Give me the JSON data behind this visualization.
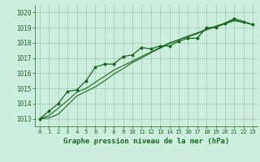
{
  "title": "Graphe pression niveau de la mer (hPa)",
  "background_color": "#cceedd",
  "grid_color": "#aaccbb",
  "line_color": "#1a6620",
  "marker_color": "#1a6620",
  "ylim": [
    1012.5,
    1020.5
  ],
  "xlim": [
    -0.5,
    23.5
  ],
  "yticks": [
    1013,
    1014,
    1015,
    1016,
    1017,
    1018,
    1019,
    1020
  ],
  "xticks": [
    0,
    1,
    2,
    3,
    4,
    5,
    6,
    7,
    8,
    9,
    10,
    11,
    12,
    13,
    14,
    15,
    16,
    17,
    18,
    19,
    20,
    21,
    22,
    23
  ],
  "series1": [
    1013.0,
    1013.5,
    1014.0,
    1014.8,
    1014.9,
    1015.5,
    1016.4,
    1016.6,
    1016.6,
    1017.1,
    1017.2,
    1017.7,
    1017.6,
    1017.8,
    1017.8,
    1018.1,
    1018.3,
    1018.3,
    1019.0,
    1019.0,
    1019.3,
    1019.6,
    1019.4,
    1019.2
  ],
  "series2": [
    1013.0,
    1013.2,
    1013.7,
    1014.2,
    1014.75,
    1015.0,
    1015.4,
    1015.8,
    1016.2,
    1016.5,
    1016.8,
    1017.1,
    1017.4,
    1017.7,
    1018.0,
    1018.2,
    1018.4,
    1018.6,
    1018.85,
    1019.05,
    1019.25,
    1019.45,
    1019.35,
    1019.2
  ],
  "series3": [
    1013.0,
    1013.05,
    1013.3,
    1013.9,
    1014.5,
    1014.8,
    1015.1,
    1015.5,
    1015.95,
    1016.3,
    1016.7,
    1017.0,
    1017.35,
    1017.65,
    1017.95,
    1018.2,
    1018.45,
    1018.65,
    1018.9,
    1019.1,
    1019.3,
    1019.5,
    1019.35,
    1019.2
  ]
}
